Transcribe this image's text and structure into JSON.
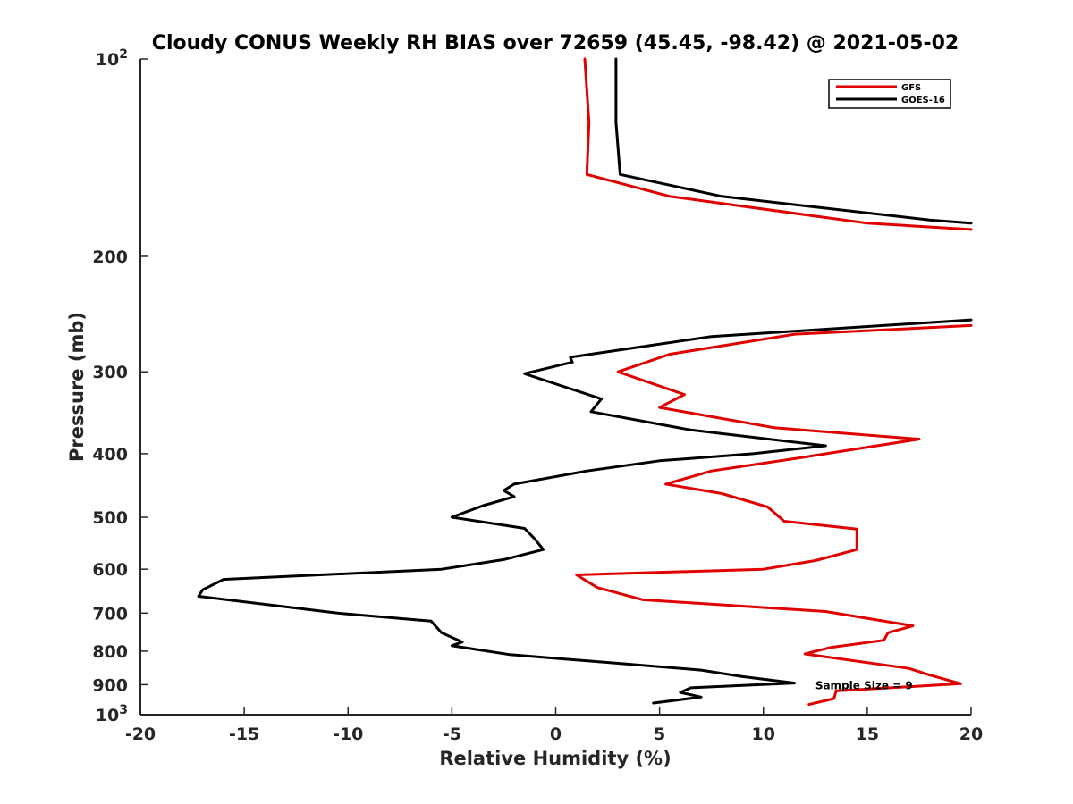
{
  "chart_data": {
    "type": "line",
    "title": "Cloudy CONUS Weekly RH BIAS over 72659 (45.45, -98.42) @ 2021-05-02",
    "xlabel": "Relative Humidity (%)",
    "ylabel": "Pressure (mb)",
    "xlim": [
      -20,
      20
    ],
    "ylim": [
      100,
      1000
    ],
    "yscale": "log",
    "y_reversed": true,
    "grid": false,
    "legend_position": "top-right",
    "x_ticks": [
      {
        "value": -20,
        "label": "-20"
      },
      {
        "value": -15,
        "label": "-15"
      },
      {
        "value": -10,
        "label": "-10"
      },
      {
        "value": -5,
        "label": "-5"
      },
      {
        "value": 0,
        "label": "0"
      },
      {
        "value": 5,
        "label": "5"
      },
      {
        "value": 10,
        "label": "10"
      },
      {
        "value": 15,
        "label": "15"
      },
      {
        "value": 20,
        "label": "20"
      }
    ],
    "y_ticks": [
      {
        "value": 100,
        "label": "10",
        "sup": "2"
      },
      {
        "value": 200,
        "label": "200",
        "sup": ""
      },
      {
        "value": 300,
        "label": "300",
        "sup": ""
      },
      {
        "value": 400,
        "label": "400",
        "sup": ""
      },
      {
        "value": 500,
        "label": "500",
        "sup": ""
      },
      {
        "value": 600,
        "label": "600",
        "sup": ""
      },
      {
        "value": 700,
        "label": "700",
        "sup": ""
      },
      {
        "value": 800,
        "label": "800",
        "sup": ""
      },
      {
        "value": 900,
        "label": "900",
        "sup": ""
      },
      {
        "value": 1000,
        "label": "10",
        "sup": "3"
      }
    ],
    "annotation": {
      "text": "Sample Size = 9",
      "x": 12.5,
      "y": 900
    },
    "series": [
      {
        "name": "GFS",
        "color": "#e00000",
        "segments": [
          [
            {
              "x": 1.4,
              "y": 100
            },
            {
              "x": 1.6,
              "y": 125
            },
            {
              "x": 1.5,
              "y": 150
            },
            {
              "x": 5.5,
              "y": 162
            },
            {
              "x": 15.0,
              "y": 178
            },
            {
              "x": 20.0,
              "y": 182
            }
          ],
          [
            {
              "x": 20.0,
              "y": 255
            },
            {
              "x": 11.5,
              "y": 263
            },
            {
              "x": 5.5,
              "y": 282
            },
            {
              "x": 3.0,
              "y": 300
            },
            {
              "x": 6.2,
              "y": 325
            },
            {
              "x": 5.0,
              "y": 340
            },
            {
              "x": 10.5,
              "y": 365
            },
            {
              "x": 17.5,
              "y": 380
            },
            {
              "x": 11.5,
              "y": 407
            },
            {
              "x": 7.5,
              "y": 425
            },
            {
              "x": 5.3,
              "y": 445
            },
            {
              "x": 8.0,
              "y": 460
            },
            {
              "x": 10.2,
              "y": 482
            },
            {
              "x": 11.0,
              "y": 507
            },
            {
              "x": 14.5,
              "y": 521
            },
            {
              "x": 14.5,
              "y": 560
            },
            {
              "x": 12.5,
              "y": 582
            },
            {
              "x": 10.0,
              "y": 600
            },
            {
              "x": 1.0,
              "y": 612
            },
            {
              "x": 2.0,
              "y": 640
            },
            {
              "x": 4.2,
              "y": 668
            },
            {
              "x": 13.0,
              "y": 696
            },
            {
              "x": 17.2,
              "y": 732
            },
            {
              "x": 16.0,
              "y": 750
            },
            {
              "x": 15.8,
              "y": 770
            },
            {
              "x": 13.2,
              "y": 790
            },
            {
              "x": 12.0,
              "y": 808
            },
            {
              "x": 17.0,
              "y": 850
            },
            {
              "x": 18.0,
              "y": 870
            },
            {
              "x": 19.5,
              "y": 897
            },
            {
              "x": 13.5,
              "y": 920
            },
            {
              "x": 13.4,
              "y": 945
            },
            {
              "x": 12.2,
              "y": 965
            }
          ]
        ]
      },
      {
        "name": "GOES-16",
        "color": "#000000",
        "segments": [
          [
            {
              "x": 2.9,
              "y": 100
            },
            {
              "x": 2.9,
              "y": 125
            },
            {
              "x": 3.1,
              "y": 150
            },
            {
              "x": 8.0,
              "y": 162
            },
            {
              "x": 18.0,
              "y": 176
            },
            {
              "x": 20.0,
              "y": 178
            }
          ],
          [
            {
              "x": 20.0,
              "y": 250
            },
            {
              "x": 7.5,
              "y": 265
            },
            {
              "x": 0.7,
              "y": 285
            },
            {
              "x": 0.8,
              "y": 290
            },
            {
              "x": -1.5,
              "y": 302
            },
            {
              "x": 2.2,
              "y": 330
            },
            {
              "x": 1.7,
              "y": 345
            },
            {
              "x": 6.5,
              "y": 368
            },
            {
              "x": 13.0,
              "y": 389
            },
            {
              "x": 9.5,
              "y": 400
            },
            {
              "x": 5.0,
              "y": 410
            },
            {
              "x": 1.5,
              "y": 425
            },
            {
              "x": -2.0,
              "y": 445
            },
            {
              "x": -2.5,
              "y": 455
            },
            {
              "x": -2.0,
              "y": 465
            },
            {
              "x": -3.5,
              "y": 480
            },
            {
              "x": -5.0,
              "y": 500
            },
            {
              "x": -1.5,
              "y": 520
            },
            {
              "x": -1.0,
              "y": 540
            },
            {
              "x": -0.6,
              "y": 560
            },
            {
              "x": -2.5,
              "y": 580
            },
            {
              "x": -5.5,
              "y": 600
            },
            {
              "x": -16.0,
              "y": 622
            },
            {
              "x": -17.0,
              "y": 645
            },
            {
              "x": -17.2,
              "y": 660
            },
            {
              "x": -10.5,
              "y": 700
            },
            {
              "x": -6.0,
              "y": 720
            },
            {
              "x": -5.5,
              "y": 750
            },
            {
              "x": -4.5,
              "y": 775
            },
            {
              "x": -5.0,
              "y": 785
            },
            {
              "x": -2.2,
              "y": 810
            },
            {
              "x": 3.0,
              "y": 835
            },
            {
              "x": 7.0,
              "y": 855
            },
            {
              "x": 9.0,
              "y": 875
            },
            {
              "x": 11.5,
              "y": 895
            },
            {
              "x": 6.5,
              "y": 910
            },
            {
              "x": 6.0,
              "y": 925
            },
            {
              "x": 7.0,
              "y": 940
            },
            {
              "x": 4.7,
              "y": 960
            }
          ]
        ]
      }
    ]
  }
}
